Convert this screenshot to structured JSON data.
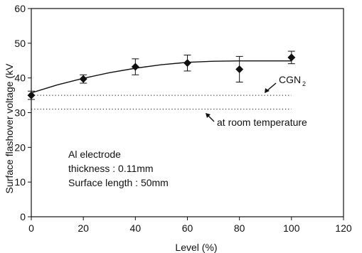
{
  "chart_data": {
    "type": "scatter",
    "xlabel": "Level (%)",
    "ylabel": "Surface flashover voltage (kV",
    "xlim": [
      0,
      120
    ],
    "ylim": [
      0,
      60
    ],
    "x_ticks": [
      0,
      20,
      40,
      60,
      80,
      100,
      120
    ],
    "y_ticks": [
      0,
      10,
      20,
      30,
      40,
      50,
      60
    ],
    "grid": false,
    "legend": "none",
    "series": [
      {
        "marker": "diamond",
        "x": [
          0,
          20,
          40,
          60,
          80,
          100
        ],
        "y": [
          35,
          39.7,
          43.2,
          44.3,
          42.5,
          45.9
        ],
        "y_err": [
          1.2,
          1.2,
          2.3,
          2.3,
          3.7,
          1.8
        ]
      },
      {
        "line": "solid-curve",
        "x": [
          0,
          10,
          20,
          30,
          40,
          50,
          60,
          70,
          80,
          90,
          100
        ],
        "y": [
          35.7,
          38.0,
          39.9,
          41.5,
          42.8,
          43.8,
          44.5,
          44.8,
          44.9,
          44.9,
          44.9
        ]
      },
      {
        "line": "dotted",
        "x": [
          0,
          100
        ],
        "y": [
          35,
          35
        ]
      },
      {
        "line": "dotted",
        "x": [
          0,
          100
        ],
        "y": [
          31,
          31
        ]
      }
    ],
    "annotations": [
      {
        "text": "CGN",
        "subscript": "2",
        "arrow_to": [
          85,
          33.8
        ]
      },
      {
        "text": "at room temperature",
        "arrow_to": [
          60,
          31.5
        ]
      }
    ],
    "text_block": [
      "Al electrode",
      "thickness : 0.11mm",
      "Surface length : 50mm"
    ]
  }
}
